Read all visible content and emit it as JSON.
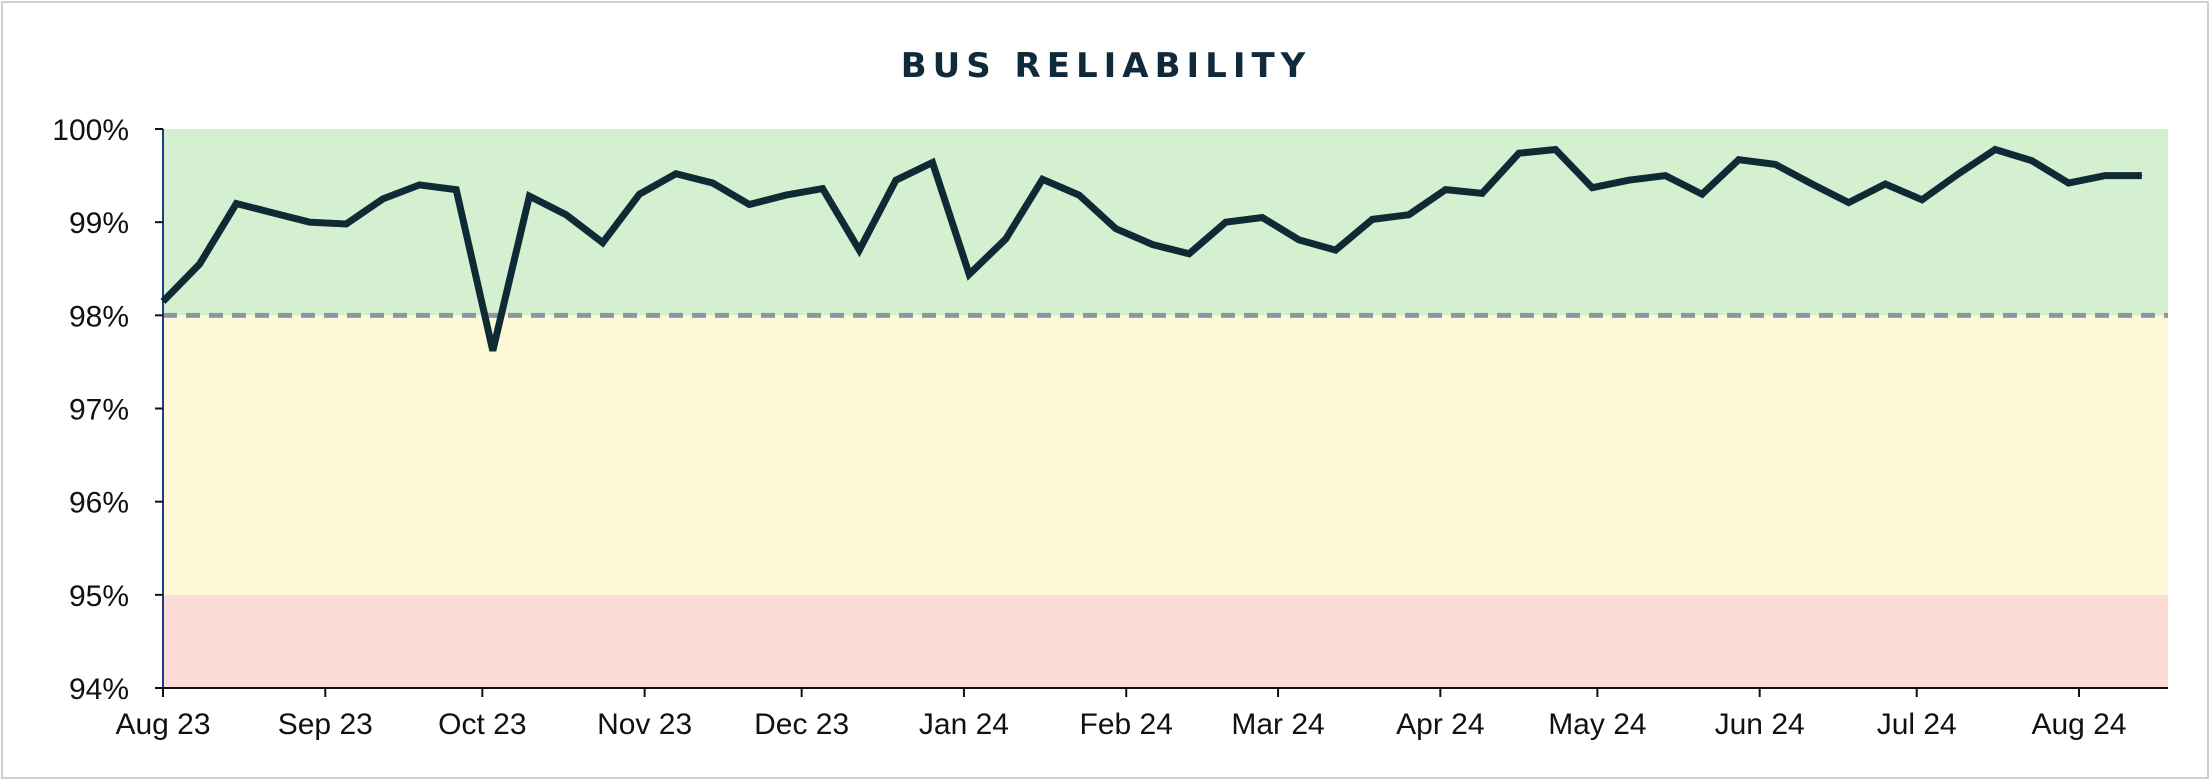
{
  "chart_data": {
    "type": "line",
    "title": "BUS RELIABILITY",
    "xlabel": "",
    "ylabel": "",
    "ylim": [
      0.94,
      1.0
    ],
    "xlim": [
      "2023-08-01",
      "2024-08-18"
    ],
    "y_tick_labels": [
      "94%",
      "95%",
      "96%",
      "97%",
      "98%",
      "99%",
      "100%"
    ],
    "y_ticks": [
      0.94,
      0.95,
      0.96,
      0.97,
      0.98,
      0.99,
      1.0
    ],
    "x_tick_labels": [
      "Aug 23",
      "Sep 23",
      "Oct 23",
      "Nov 23",
      "Dec 23",
      "Jan 24",
      "Feb 24",
      "Mar 24",
      "Apr 24",
      "May 24",
      "Jun 24",
      "Jul 24",
      "Aug 24"
    ],
    "x_ticks": [
      "2023-08-01",
      "2023-09-01",
      "2023-10-01",
      "2023-11-01",
      "2023-12-01",
      "2024-01-01",
      "2024-02-01",
      "2024-03-01",
      "2024-04-01",
      "2024-05-01",
      "2024-06-01",
      "2024-07-01",
      "2024-08-01"
    ],
    "bands": [
      {
        "from": 0.98,
        "to": 1.0,
        "color": "#d4f0d0"
      },
      {
        "from": 0.95,
        "to": 0.98,
        "color": "#fdf9d6"
      },
      {
        "from": 0.94,
        "to": 0.95,
        "color": "#fddcd8"
      }
    ],
    "target_line": {
      "value": 0.98,
      "color": "#8a9aa3",
      "style": "dashed"
    },
    "grid": false,
    "series": [
      {
        "color": "#0e2a35",
        "x": [
          "2023-08-01",
          "2023-08-08",
          "2023-08-15",
          "2023-08-22",
          "2023-08-29",
          "2023-09-05",
          "2023-09-12",
          "2023-09-19",
          "2023-09-26",
          "2023-10-03",
          "2023-10-10",
          "2023-10-17",
          "2023-10-24",
          "2023-10-31",
          "2023-11-07",
          "2023-11-14",
          "2023-11-21",
          "2023-11-28",
          "2023-12-05",
          "2023-12-12",
          "2023-12-19",
          "2023-12-26",
          "2024-01-02",
          "2024-01-09",
          "2024-01-16",
          "2024-01-23",
          "2024-01-30",
          "2024-02-06",
          "2024-02-13",
          "2024-02-20",
          "2024-02-27",
          "2024-03-05",
          "2024-03-12",
          "2024-03-19",
          "2024-03-26",
          "2024-04-02",
          "2024-04-09",
          "2024-04-16",
          "2024-04-23",
          "2024-04-30",
          "2024-05-07",
          "2024-05-14",
          "2024-05-21",
          "2024-05-28",
          "2024-06-04",
          "2024-06-11",
          "2024-06-18",
          "2024-06-25",
          "2024-07-02",
          "2024-07-09",
          "2024-07-16",
          "2024-07-23",
          "2024-07-30",
          "2024-08-06",
          "2024-08-13"
        ],
        "y": [
          0.9815,
          0.9855,
          0.992,
          0.991,
          0.99,
          0.9898,
          0.9925,
          0.994,
          0.9935,
          0.9762,
          0.9928,
          0.9908,
          0.9878,
          0.993,
          0.9952,
          0.9942,
          0.9919,
          0.9929,
          0.9936,
          0.987,
          0.9945,
          0.9964,
          0.9844,
          0.9882,
          0.9946,
          0.9929,
          0.9893,
          0.9876,
          0.9866,
          0.99,
          0.9905,
          0.9881,
          0.987,
          0.9903,
          0.9908,
          0.9935,
          0.9931,
          0.9974,
          0.9978,
          0.9937,
          0.9945,
          0.995,
          0.993,
          0.9967,
          0.9962,
          0.9941,
          0.9921,
          0.9941,
          0.9924,
          0.9952,
          0.9978,
          0.9966,
          0.9942,
          0.995,
          0.995
        ]
      }
    ]
  }
}
